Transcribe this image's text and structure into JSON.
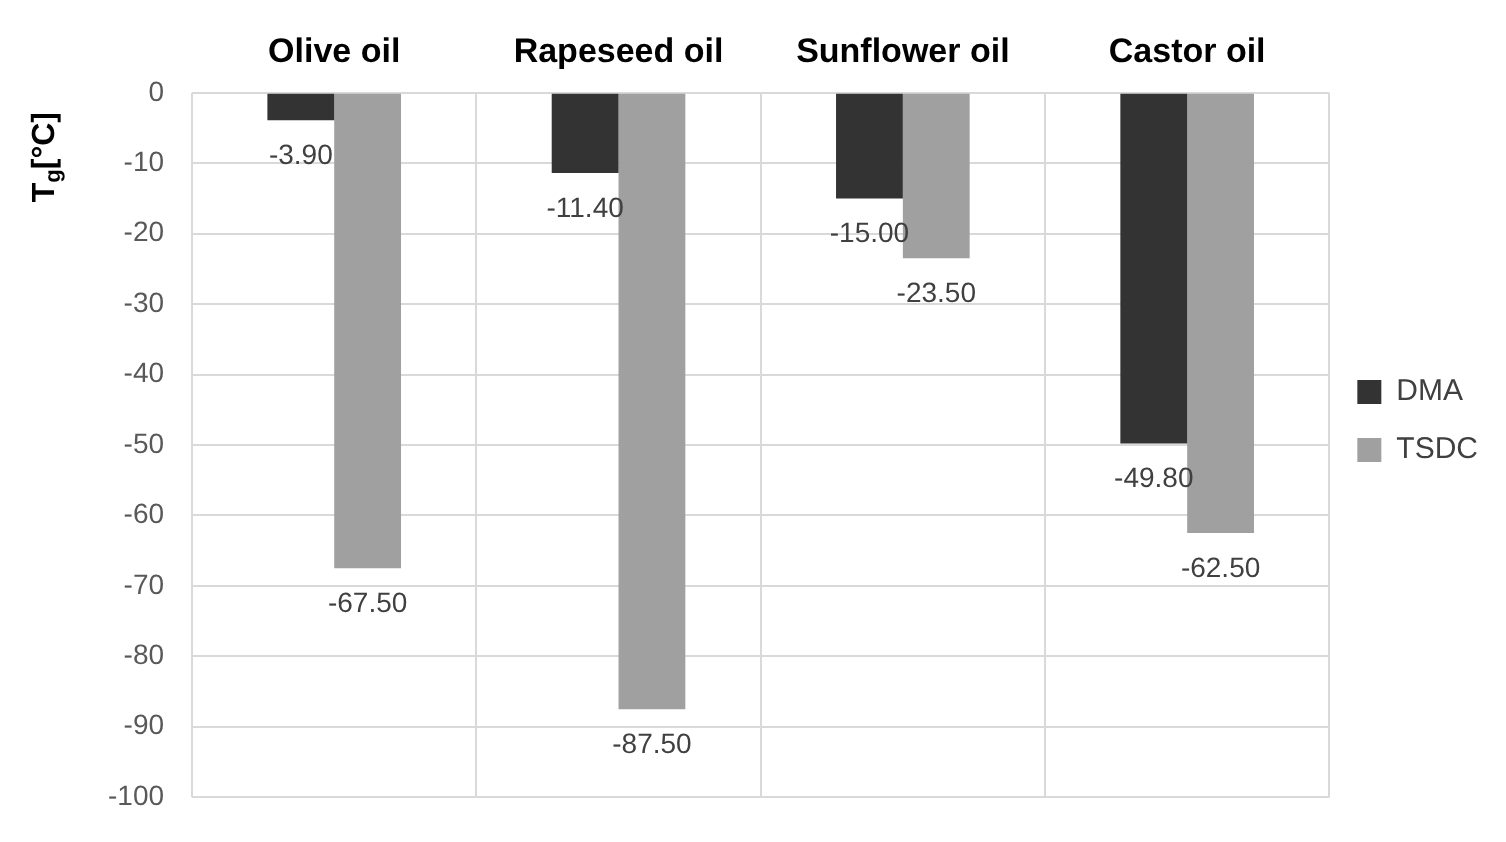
{
  "chart_data": {
    "type": "bar",
    "ylabel": "T$_{g}$[°C]",
    "categories": [
      "Olive oil",
      "Rapeseed oil",
      "Sunflower oil",
      "Castor oil"
    ],
    "series": [
      {
        "name": "DMA",
        "color": "#333333",
        "values": [
          -3.9,
          -11.4,
          -15.0,
          -49.8
        ],
        "value_labels": [
          "-3.90",
          "-11.40",
          "-15.00",
          "-49.80"
        ]
      },
      {
        "name": "TSDC",
        "color": "#a0a0a0",
        "values": [
          -67.5,
          -87.5,
          -23.5,
          -62.5
        ],
        "value_labels": [
          "-67.50",
          "-87.50",
          "-23.50",
          "-62.50"
        ]
      }
    ],
    "ylim": [
      -100,
      0
    ],
    "yticks": [
      0,
      -10,
      -20,
      -30,
      -40,
      -50,
      -60,
      -70,
      -80,
      -90,
      -100
    ],
    "grid": true,
    "legend": "right"
  }
}
